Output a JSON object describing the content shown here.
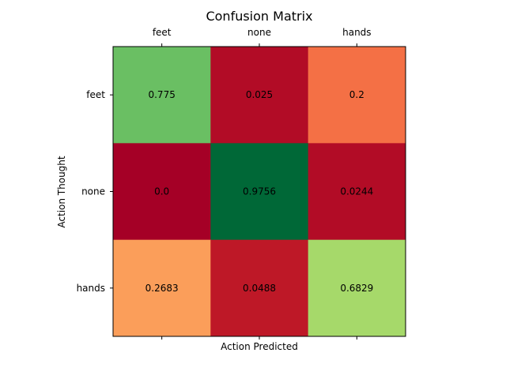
{
  "chart_data": {
    "type": "heatmap",
    "title": "Confusion Matrix",
    "xlabel": "Action Predicted",
    "ylabel": "Action Thought",
    "x_categories": [
      "feet",
      "none",
      "hands"
    ],
    "y_categories": [
      "feet",
      "none",
      "hands"
    ],
    "values": [
      [
        0.775,
        0.025,
        0.2
      ],
      [
        0.0,
        0.9756,
        0.0244
      ],
      [
        0.2683,
        0.0488,
        0.6829
      ]
    ],
    "value_labels": [
      [
        "0.775",
        "0.025",
        "0.2"
      ],
      [
        "0.0",
        "0.9756",
        "0.0244"
      ],
      [
        "0.2683",
        "0.0488",
        "0.6829"
      ]
    ],
    "colormap": "RdYlGn",
    "x_tick_position": "top",
    "grid": false
  }
}
